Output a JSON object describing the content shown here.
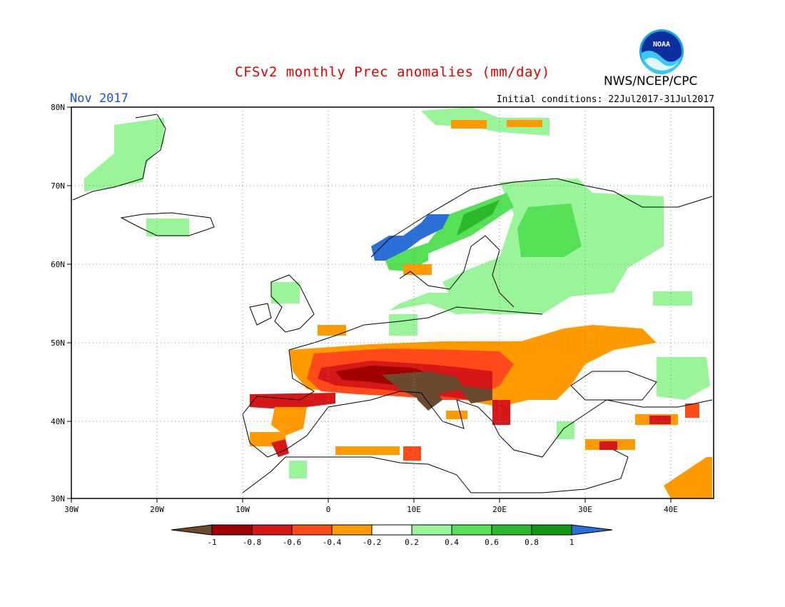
{
  "header": {
    "title": "CFSv2 monthly Prec anomalies (mm/day)",
    "month": "Nov 2017",
    "initial_conditions": "Initial conditions: 22Jul2017-31Jul2017",
    "agency": "NWS/NCEP/CPC",
    "logo_text": "NOAA"
  },
  "map": {
    "lon_ticks": [
      "30W",
      "20W",
      "10W",
      "0",
      "10E",
      "20E",
      "30E",
      "40E"
    ],
    "lat_ticks": [
      "80N",
      "70N",
      "60N",
      "50N",
      "40N",
      "30N"
    ],
    "grid": true,
    "grid_style": "dotted"
  },
  "legend": {
    "labels": [
      "-1",
      "-0.8",
      "-0.6",
      "-0.4",
      "-0.2",
      "0.2",
      "0.4",
      "0.6",
      "0.8",
      "1"
    ],
    "colors": [
      "#6b4a30",
      "#a00000",
      "#d61818",
      "#ff4b1a",
      "#ff9a00",
      "#ffffff",
      "#9af59a",
      "#55e055",
      "#2cb82c",
      "#139613",
      "#2b6fd6"
    ]
  },
  "colors": {
    "brown": "#6b4a30",
    "dark_red": "#a00000",
    "red": "#d61818",
    "orange_red": "#ff4b1a",
    "orange": "#ff9a00",
    "light_green": "#9af59a",
    "green": "#55e055",
    "mid_green": "#2cb82c",
    "dark_green": "#139613",
    "blue": "#2b6fd6"
  }
}
